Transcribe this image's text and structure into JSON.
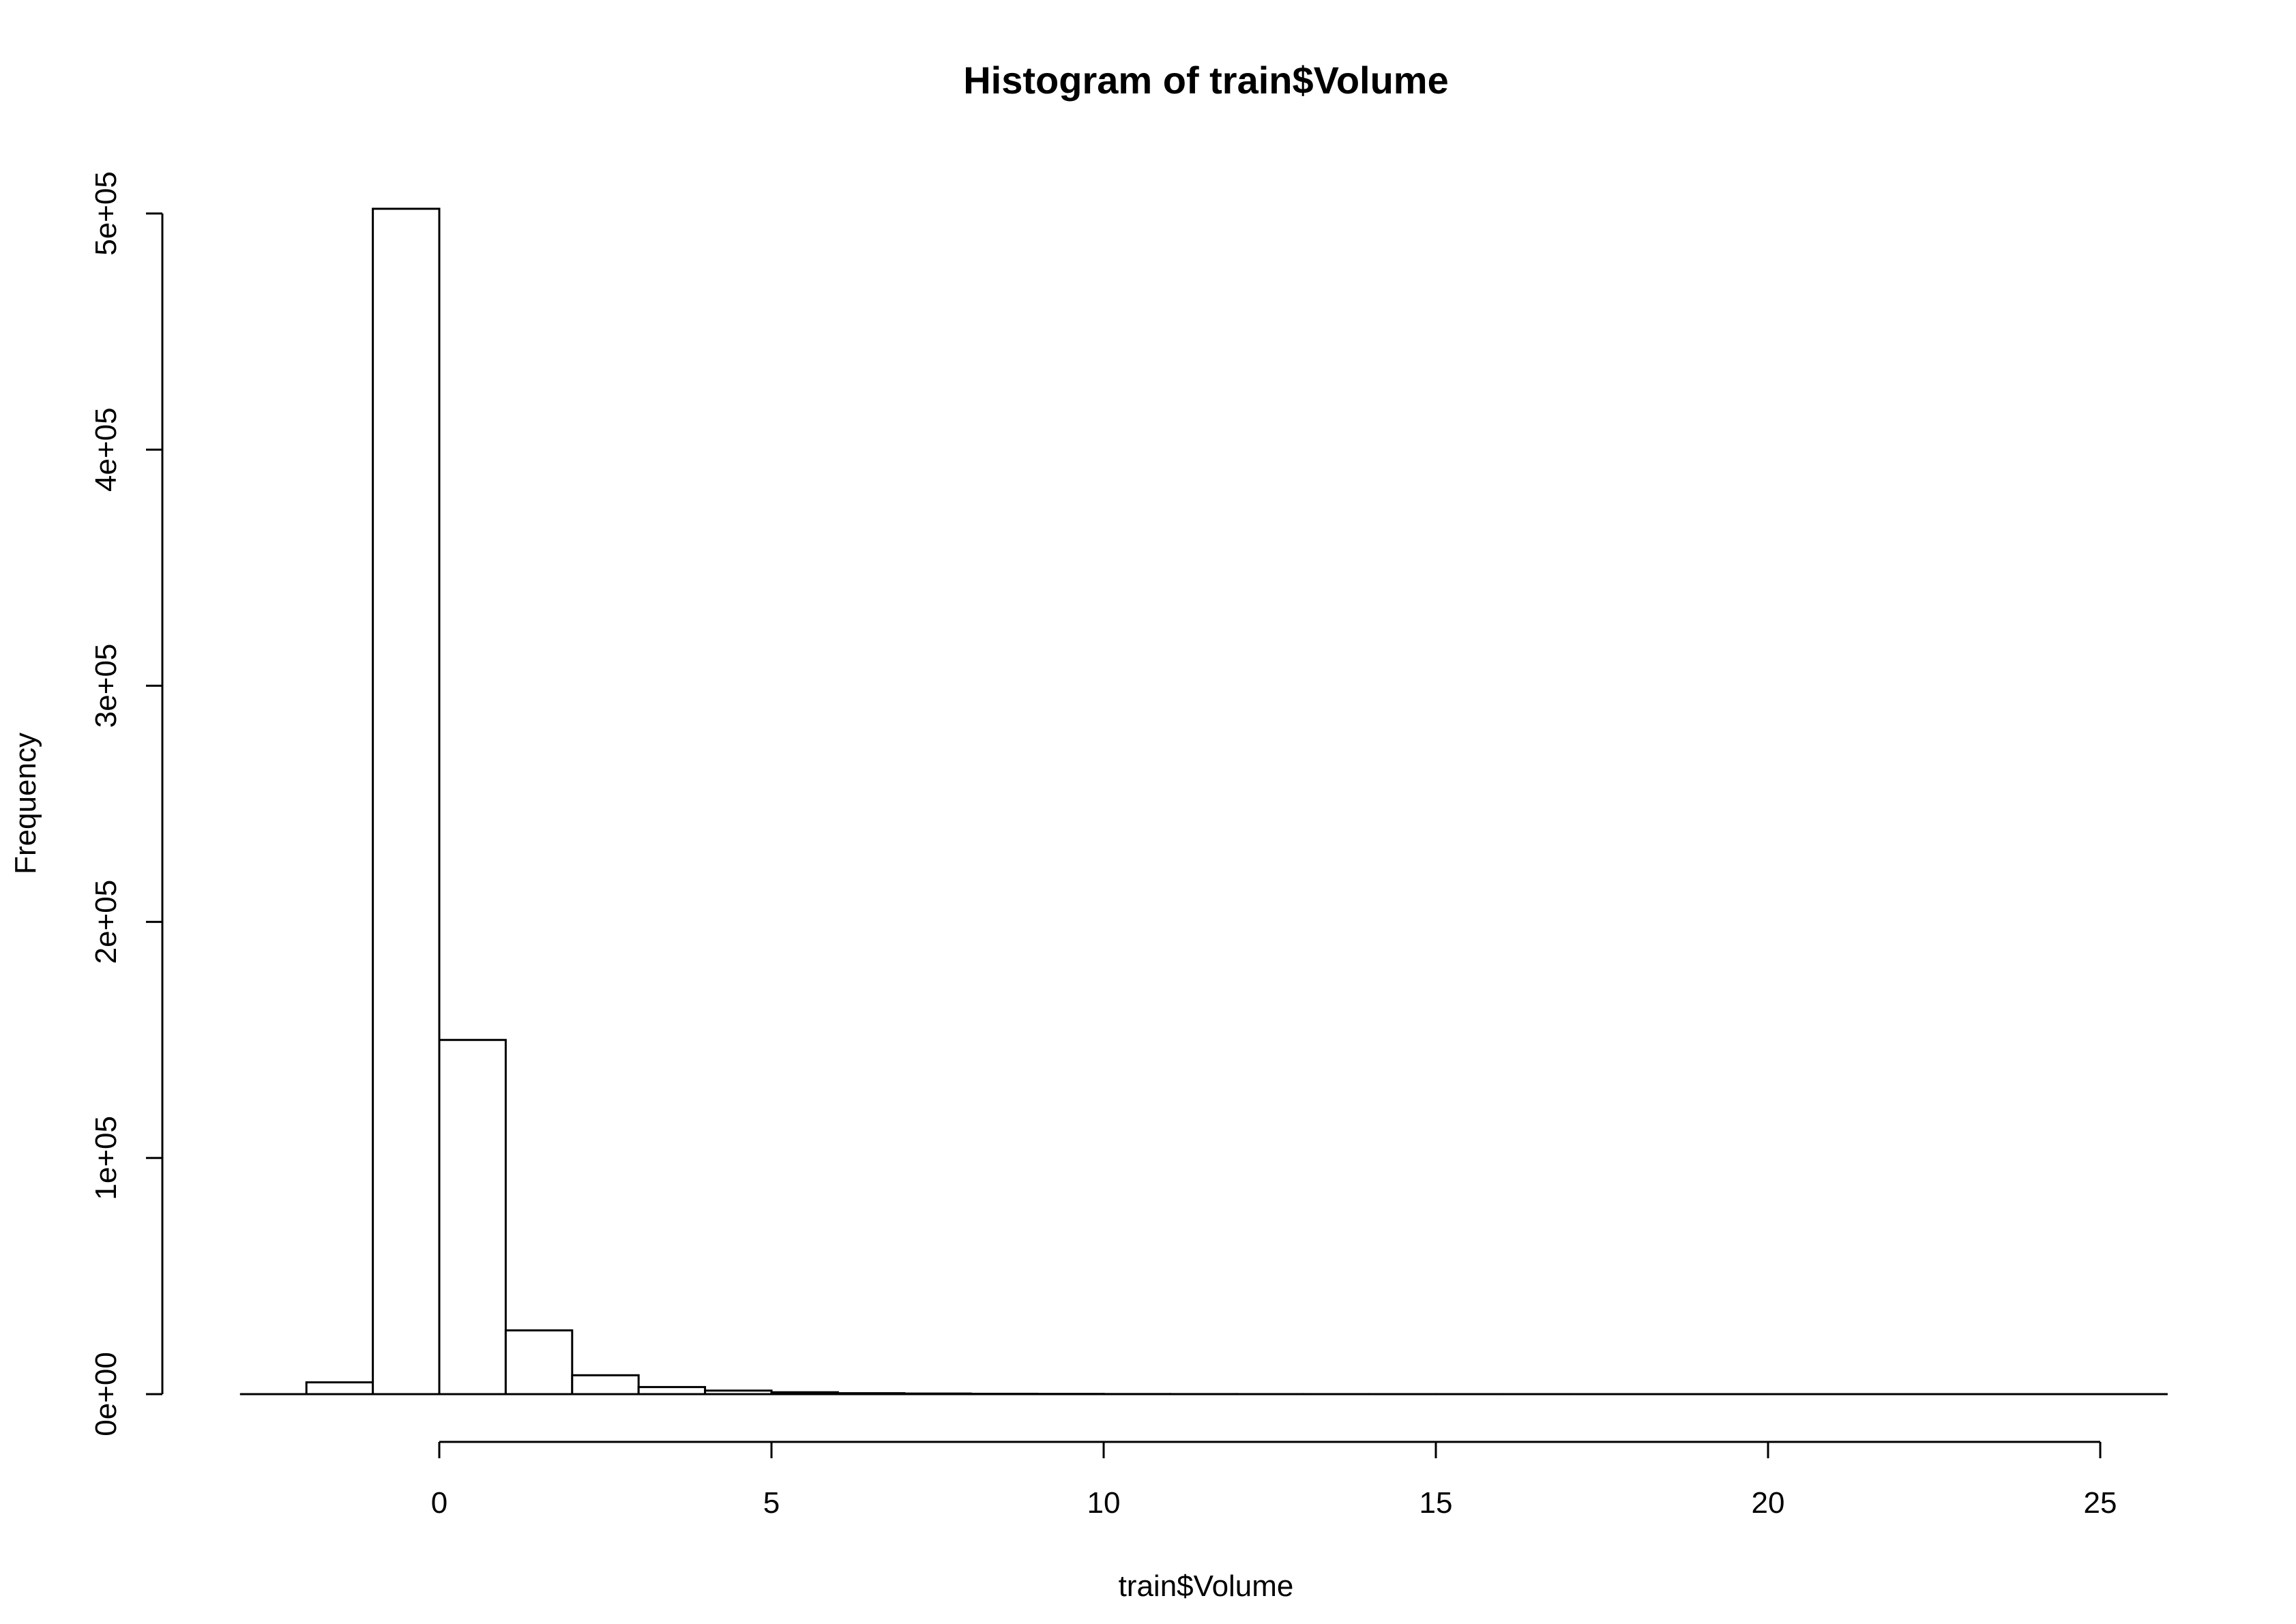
{
  "chart_data": {
    "type": "bar",
    "title": "Histogram of train$Volume",
    "xlabel": "train$Volume",
    "ylabel": "Frequency",
    "bins": [
      {
        "x0": -2,
        "x1": -1,
        "count": 5000
      },
      {
        "x0": -1,
        "x1": 0,
        "count": 502000
      },
      {
        "x0": 0,
        "x1": 1,
        "count": 150000
      },
      {
        "x0": 1,
        "x1": 2,
        "count": 27000
      },
      {
        "x0": 2,
        "x1": 3,
        "count": 8000
      },
      {
        "x0": 3,
        "x1": 4,
        "count": 3000
      },
      {
        "x0": 4,
        "x1": 5,
        "count": 1500
      },
      {
        "x0": 5,
        "x1": 6,
        "count": 800
      },
      {
        "x0": 6,
        "x1": 7,
        "count": 400
      },
      {
        "x0": 7,
        "x1": 8,
        "count": 250
      },
      {
        "x0": 8,
        "x1": 9,
        "count": 150
      },
      {
        "x0": 9,
        "x1": 10,
        "count": 100
      },
      {
        "x0": 10,
        "x1": 11,
        "count": 50
      },
      {
        "x0": 11,
        "x1": 12,
        "count": 30
      },
      {
        "x0": 12,
        "x1": 13,
        "count": 20
      },
      {
        "x0": 13,
        "x1": 14,
        "count": 15
      },
      {
        "x0": 14,
        "x1": 15,
        "count": 10
      },
      {
        "x0": 15,
        "x1": 16,
        "count": 8
      },
      {
        "x0": 16,
        "x1": 17,
        "count": 6
      },
      {
        "x0": 17,
        "x1": 18,
        "count": 5
      },
      {
        "x0": 18,
        "x1": 19,
        "count": 4
      },
      {
        "x0": 19,
        "x1": 20,
        "count": 3
      },
      {
        "x0": 20,
        "x1": 21,
        "count": 2
      },
      {
        "x0": 21,
        "x1": 22,
        "count": 2
      },
      {
        "x0": 22,
        "x1": 23,
        "count": 1
      },
      {
        "x0": 23,
        "x1": 24,
        "count": 1
      },
      {
        "x0": 24,
        "x1": 25,
        "count": 1
      },
      {
        "x0": 25,
        "x1": 26,
        "count": 1
      }
    ],
    "xlim": [
      -3,
      26
    ],
    "ylim": [
      0,
      500000
    ],
    "x_ticks": [
      0,
      5,
      10,
      15,
      20,
      25
    ],
    "x_tick_labels": [
      "0",
      "5",
      "10",
      "15",
      "20",
      "25"
    ],
    "y_ticks": [
      0,
      100000,
      200000,
      300000,
      400000,
      500000
    ],
    "y_tick_labels": [
      "0e+00",
      "1e+05",
      "2e+05",
      "3e+05",
      "4e+05",
      "5e+05"
    ],
    "grid": false,
    "colors": {
      "bar_fill": "#ffffff",
      "bar_stroke": "#000000",
      "background": "#ffffff"
    }
  }
}
